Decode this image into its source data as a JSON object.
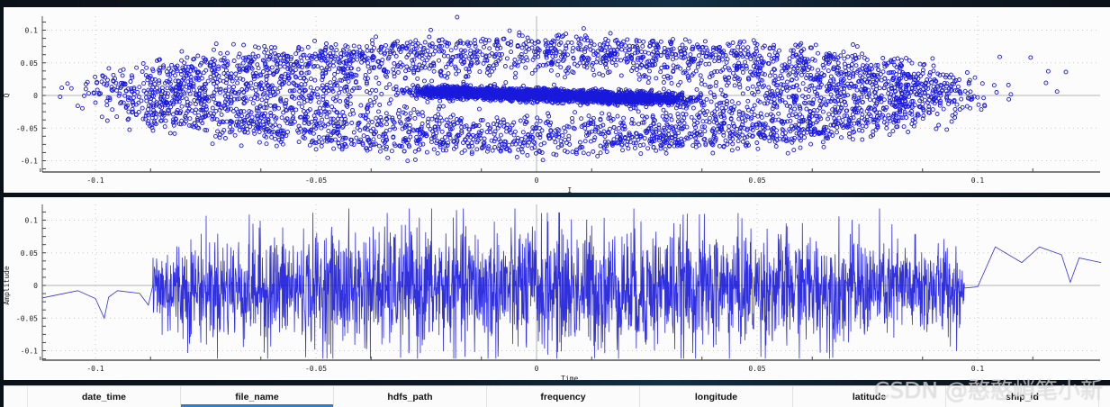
{
  "chart_data": [
    {
      "type": "scatter",
      "title": "",
      "xlabel": "I",
      "ylabel": "Q",
      "xlim": [
        -0.112,
        0.128
      ],
      "ylim": [
        -0.115,
        0.12
      ],
      "x_ticks": [
        "-0.1",
        "-0.05",
        "0",
        "0.05",
        "0.1"
      ],
      "y_ticks": [
        "0.1",
        "0.05",
        "0",
        "-0.05",
        "-0.1"
      ],
      "grid": true,
      "marker": "circle-open",
      "color": "#1a1adc",
      "description": "Constellation (IQ) diagram: broad elliptical cloud spanning I ≈ -0.1..0.1, Q ≈ -0.1..0.1 with dense elongated core near I ≈ -0.025..0.03, Q ≈ -0.01..0.01; sparse outliers out to I ≈ 0.13",
      "notable_points": [
        {
          "x": -0.108,
          "y": -0.002
        },
        {
          "x": -0.104,
          "y": -0.016
        },
        {
          "x": -0.1,
          "y": -0.011
        },
        {
          "x": -0.087,
          "y": 0.012
        },
        {
          "x": -0.075,
          "y": 0.055
        },
        {
          "x": -0.018,
          "y": 0.12
        },
        {
          "x": 0.1,
          "y": -0.003
        },
        {
          "x": 0.105,
          "y": 0.059
        },
        {
          "x": 0.112,
          "y": 0.058
        },
        {
          "x": 0.116,
          "y": 0.037
        },
        {
          "x": 0.12,
          "y": 0.036
        },
        {
          "x": 0.118,
          "y": 0.006
        },
        {
          "x": 0.128,
          "y": 0.033
        }
      ]
    },
    {
      "type": "line",
      "title": "",
      "xlabel": "Time",
      "ylabel": "Amplitude",
      "xlim": [
        -0.112,
        0.128
      ],
      "ylim": [
        -0.115,
        0.12
      ],
      "x_ticks": [
        "-0.1",
        "-0.05",
        "0",
        "0.05",
        "0.1"
      ],
      "y_ticks": [
        "0.1",
        "0.05",
        "0",
        "-0.05",
        "-0.1"
      ],
      "grid": true,
      "color": "#1a1adc",
      "description": "Dense oscillating signal with amplitude envelope ≈ ±0.05..±0.1 between t ≈ -0.1 and 0.098; sparse tail segments at both ends",
      "left_tail": [
        {
          "x": -0.112,
          "y": -0.019
        },
        {
          "x": -0.104,
          "y": -0.008
        },
        {
          "x": -0.1,
          "y": -0.02
        },
        {
          "x": -0.098,
          "y": -0.05
        },
        {
          "x": -0.097,
          "y": -0.018
        },
        {
          "x": -0.095,
          "y": -0.008
        },
        {
          "x": -0.09,
          "y": -0.012
        },
        {
          "x": -0.088,
          "y": -0.03
        }
      ],
      "right_tail": [
        {
          "x": 0.097,
          "y": -0.004
        },
        {
          "x": 0.1,
          "y": -0.002
        },
        {
          "x": 0.104,
          "y": 0.059
        },
        {
          "x": 0.11,
          "y": 0.035
        },
        {
          "x": 0.114,
          "y": 0.059
        },
        {
          "x": 0.119,
          "y": 0.047
        },
        {
          "x": 0.121,
          "y": 0.005
        },
        {
          "x": 0.123,
          "y": 0.042
        },
        {
          "x": 0.128,
          "y": 0.035
        }
      ]
    }
  ],
  "table": {
    "columns": [
      {
        "label": "date_time",
        "selected": false
      },
      {
        "label": "file_name",
        "selected": true
      },
      {
        "label": "hdfs_path",
        "selected": false
      },
      {
        "label": "frequency",
        "selected": false
      },
      {
        "label": "longitude",
        "selected": false
      },
      {
        "label": "latitude",
        "selected": false
      },
      {
        "label": "ship_id",
        "selected": false
      }
    ]
  },
  "watermark": "CSDN @憨憨峭笔小新",
  "colors": {
    "series": "#1a1adc",
    "selected_header": "#2a7fd4",
    "panel_bg": "#fcfcfd"
  }
}
